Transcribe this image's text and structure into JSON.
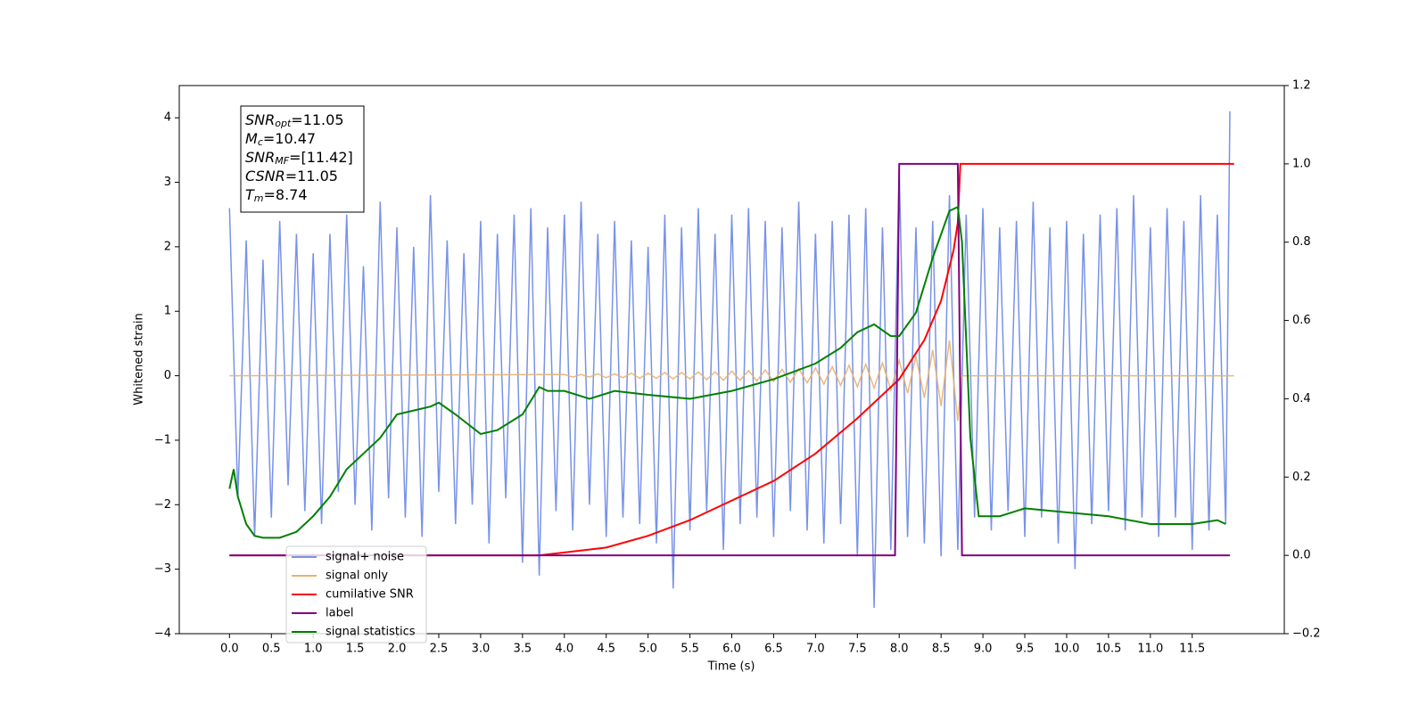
{
  "chart_data": {
    "type": "line",
    "xlabel": "Time (s)",
    "ylabel": "Whitened strain",
    "xlim": [
      -0.6,
      12.6
    ],
    "ylim": [
      -4,
      4.5
    ],
    "y2lim": [
      -0.2,
      1.2
    ],
    "xticks": [
      {
        "value": 0,
        "label": "0.0"
      },
      0.5,
      {
        "value": 1,
        "label": "1.0"
      },
      1.5,
      {
        "value": 2,
        "label": "2.0"
      },
      2.5,
      {
        "value": 3,
        "label": "3.0"
      },
      3.5,
      {
        "value": 4,
        "label": "4.0"
      },
      4.5,
      {
        "value": 5,
        "label": "5.0"
      },
      5.5,
      {
        "value": 6,
        "label": "6.0"
      },
      6.5,
      {
        "value": 7,
        "label": "7.0"
      },
      7.5,
      {
        "value": 8,
        "label": "8.0"
      },
      8.5,
      {
        "value": 9,
        "label": "9.0"
      },
      9.5,
      {
        "value": 10,
        "label": "10.0"
      },
      10.5,
      {
        "value": 11,
        "label": "11.0"
      },
      11.5
    ],
    "yticks": [
      {
        "value": -4,
        "label": "−4"
      },
      {
        "value": -3,
        "label": "−3"
      },
      {
        "value": -2,
        "label": "−2"
      },
      {
        "value": -1,
        "label": "−1"
      },
      0,
      1,
      2,
      3,
      4
    ],
    "y2ticks": [
      {
        "value": -0.2,
        "label": "−0.2"
      },
      {
        "value": 0,
        "label": "0.0"
      },
      0.2,
      0.4,
      0.6,
      0.8,
      {
        "value": 1,
        "label": "1.0"
      },
      1.2
    ],
    "legend": "lower left",
    "series": [
      {
        "name": "signal+ noise",
        "color": "#7892e8",
        "x": [
          0,
          0.1,
          0.2,
          0.3,
          0.4,
          0.5,
          0.6,
          0.7,
          0.8,
          0.9,
          1,
          1.1,
          1.2,
          1.3,
          1.4,
          1.5,
          1.6,
          1.7,
          1.8,
          1.9,
          2,
          2.1,
          2.2,
          2.3,
          2.4,
          2.5,
          2.6,
          2.7,
          2.8,
          2.9,
          3,
          3.1,
          3.2,
          3.3,
          3.4,
          3.5,
          3.6,
          3.7,
          3.8,
          3.9,
          4,
          4.1,
          4.2,
          4.3,
          4.4,
          4.5,
          4.6,
          4.7,
          4.8,
          4.9,
          5,
          5.1,
          5.2,
          5.3,
          5.4,
          5.5,
          5.6,
          5.7,
          5.8,
          5.9,
          6,
          6.1,
          6.2,
          6.3,
          6.4,
          6.5,
          6.6,
          6.7,
          6.8,
          6.9,
          7,
          7.1,
          7.2,
          7.3,
          7.4,
          7.5,
          7.6,
          7.7,
          7.8,
          7.9,
          8,
          8.1,
          8.2,
          8.3,
          8.4,
          8.5,
          8.6,
          8.7,
          8.8,
          8.9,
          9,
          9.1,
          9.2,
          9.3,
          9.4,
          9.5,
          9.6,
          9.7,
          9.8,
          9.9,
          10,
          10.1,
          10.2,
          10.3,
          10.4,
          10.5,
          10.6,
          10.7,
          10.8,
          10.9,
          11,
          11.1,
          11.2,
          11.3,
          11.4,
          11.5,
          11.6,
          11.7,
          11.8,
          11.9,
          11.95
        ],
        "values": [
          2.6,
          -1.9,
          2.1,
          -2.5,
          1.8,
          -2.2,
          2.4,
          -1.7,
          2.2,
          -2.1,
          1.9,
          -2.3,
          2.2,
          -1.8,
          2.5,
          -2.0,
          1.7,
          -2.4,
          2.7,
          -1.9,
          2.3,
          -2.2,
          2.0,
          -2.5,
          2.8,
          -1.8,
          2.1,
          -2.3,
          1.9,
          -2.0,
          2.4,
          -2.6,
          2.2,
          -1.9,
          2.5,
          -2.9,
          2.6,
          -3.1,
          2.3,
          -2.1,
          2.5,
          -2.4,
          2.7,
          -2.0,
          2.2,
          -2.5,
          2.4,
          -2.2,
          2.1,
          -2.3,
          2.0,
          -2.6,
          2.5,
          -3.3,
          2.3,
          -2.4,
          2.6,
          -2.1,
          2.2,
          -2.7,
          2.5,
          -2.3,
          2.6,
          -2.2,
          2.4,
          -2.5,
          2.3,
          -2.1,
          2.7,
          -2.4,
          2.2,
          -2.6,
          2.4,
          -2.3,
          2.5,
          -2.8,
          2.6,
          -3.6,
          2.3,
          -2.7,
          3.2,
          -2.5,
          2.3,
          -2.6,
          2.4,
          -2.8,
          2.8,
          -2.7,
          2.5,
          -2.2,
          2.6,
          -2.4,
          2.3,
          -2.1,
          2.4,
          -2.5,
          2.7,
          -2.2,
          2.3,
          -2.6,
          2.4,
          -3.0,
          2.2,
          -2.3,
          2.5,
          -2.1,
          2.6,
          -2.4,
          2.8,
          -2.2,
          2.3,
          -2.5,
          2.6,
          -2.2,
          2.4,
          -2.7,
          2.8,
          -2.4,
          2.5,
          -2.3,
          4.1
        ]
      },
      {
        "name": "signal only",
        "color": "#e8b070",
        "x": [
          0,
          4,
          4.1,
          4.2,
          4.3,
          4.4,
          4.5,
          4.6,
          4.7,
          4.8,
          4.9,
          5,
          5.1,
          5.2,
          5.3,
          5.4,
          5.5,
          5.6,
          5.7,
          5.8,
          5.9,
          6,
          6.1,
          6.2,
          6.3,
          6.4,
          6.5,
          6.6,
          6.7,
          6.8,
          6.9,
          7,
          7.1,
          7.2,
          7.3,
          7.4,
          7.5,
          7.6,
          7.7,
          7.8,
          7.9,
          8,
          8.1,
          8.2,
          8.3,
          8.4,
          8.5,
          8.6,
          8.7,
          8.75,
          12
        ],
        "values": [
          0,
          0.02,
          -0.02,
          0.02,
          -0.02,
          0.03,
          -0.03,
          0.03,
          -0.03,
          0.04,
          -0.04,
          0.04,
          -0.04,
          0.05,
          -0.05,
          0.05,
          -0.05,
          0.06,
          -0.06,
          0.06,
          -0.07,
          0.07,
          -0.07,
          0.08,
          -0.08,
          0.09,
          -0.09,
          0.1,
          -0.1,
          0.11,
          -0.11,
          0.12,
          -0.13,
          0.14,
          -0.15,
          0.16,
          -0.17,
          0.18,
          -0.19,
          0.2,
          -0.22,
          0.24,
          -0.27,
          0.3,
          -0.34,
          0.4,
          -0.47,
          0.55,
          -0.7,
          0,
          0
        ]
      },
      {
        "name": "cumilative SNR",
        "color": "#ff0000",
        "axis": "y2",
        "x": [
          0,
          3.7,
          4.5,
          5,
          5.5,
          6,
          6.5,
          7,
          7.5,
          8,
          8.3,
          8.5,
          8.65,
          8.7,
          8.73,
          12
        ],
        "values": [
          0,
          0,
          0.02,
          0.05,
          0.09,
          0.14,
          0.19,
          0.26,
          0.35,
          0.45,
          0.55,
          0.65,
          0.78,
          0.85,
          1.0,
          1.0
        ]
      },
      {
        "name": "label",
        "color": "#800080",
        "axis": "y2",
        "x": [
          0,
          7.95,
          8.0,
          8.7,
          8.75,
          11.95
        ],
        "values": [
          0,
          0,
          1,
          1,
          0,
          0
        ]
      },
      {
        "name": "signal statistics",
        "color": "#008000",
        "axis": "y2",
        "x": [
          0,
          0.05,
          0.1,
          0.2,
          0.3,
          0.4,
          0.6,
          0.8,
          1.0,
          1.2,
          1.4,
          1.6,
          1.8,
          2.0,
          2.2,
          2.4,
          2.5,
          2.7,
          3.0,
          3.2,
          3.5,
          3.7,
          3.8,
          4.0,
          4.3,
          4.6,
          5.0,
          5.5,
          6.0,
          6.5,
          7.0,
          7.3,
          7.5,
          7.7,
          7.9,
          8.0,
          8.2,
          8.4,
          8.6,
          8.7,
          8.75,
          8.85,
          8.95,
          9.2,
          9.5,
          10.0,
          10.5,
          11.0,
          11.5,
          11.8,
          11.9
        ],
        "values": [
          0.17,
          0.22,
          0.15,
          0.08,
          0.05,
          0.045,
          0.045,
          0.06,
          0.1,
          0.15,
          0.22,
          0.26,
          0.3,
          0.36,
          0.37,
          0.38,
          0.39,
          0.36,
          0.31,
          0.32,
          0.36,
          0.43,
          0.42,
          0.42,
          0.4,
          0.42,
          0.41,
          0.4,
          0.42,
          0.45,
          0.49,
          0.53,
          0.57,
          0.59,
          0.56,
          0.56,
          0.62,
          0.76,
          0.88,
          0.89,
          0.8,
          0.3,
          0.1,
          0.1,
          0.12,
          0.11,
          0.1,
          0.08,
          0.08,
          0.09,
          0.08
        ]
      }
    ],
    "annotation": [
      {
        "symbol": "SNR",
        "sub": "opt",
        "value": "=11.05"
      },
      {
        "symbol": "M",
        "sub": "c",
        "value": "=10.47"
      },
      {
        "symbol": "SNR",
        "sub": "MF",
        "value": "=[11.42]"
      },
      {
        "symbol": "CSNR",
        "value": "=11.05"
      },
      {
        "symbol": "T",
        "sub": "m",
        "value": "=8.74"
      }
    ]
  }
}
